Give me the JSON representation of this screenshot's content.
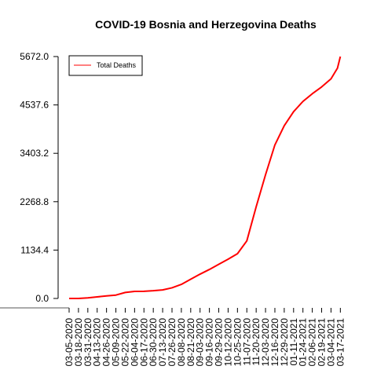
{
  "chart_data": {
    "type": "line",
    "title": "COVID-19 Bosnia and Herzegovina Deaths",
    "xlabel": "",
    "ylabel": "",
    "ylim": [
      0,
      5672
    ],
    "yticks": [
      "0.0",
      "1134.4",
      "2268.8",
      "3403.2",
      "4537.6",
      "5672.0"
    ],
    "ytick_values": [
      0,
      1134.4,
      2268.8,
      3403.2,
      4537.6,
      5672.0
    ],
    "xlim": [
      "2020-03-05",
      "2021-03-21"
    ],
    "xticks": [
      "03-05-2020",
      "03-18-2020",
      "03-31-2020",
      "04-13-2020",
      "04-26-2020",
      "05-09-2020",
      "05-22-2020",
      "06-04-2020",
      "06-17-2020",
      "06-30-2020",
      "07-13-2020",
      "07-26-2020",
      "08-08-2020",
      "08-21-2020",
      "09-03-2020",
      "09-16-2020",
      "09-29-2020",
      "10-12-2020",
      "10-25-2020",
      "11-07-2020",
      "11-20-2020",
      "12-03-2020",
      "12-16-2020",
      "12-29-2020",
      "01-11-2021",
      "01-24-2021",
      "02-06-2021",
      "02-19-2021",
      "03-04-2021",
      "03-17-2021"
    ],
    "legend": {
      "position": "top-left",
      "entries": [
        {
          "label": "Total Deaths",
          "color": "#ff0000"
        }
      ]
    },
    "grid": false,
    "series": [
      {
        "name": "Total Deaths",
        "color": "#ff0000",
        "points": [
          [
            "2020-03-05",
            0
          ],
          [
            "2020-03-18",
            1
          ],
          [
            "2020-03-31",
            13
          ],
          [
            "2020-04-13",
            37
          ],
          [
            "2020-04-26",
            59
          ],
          [
            "2020-05-09",
            79
          ],
          [
            "2020-05-22",
            140
          ],
          [
            "2020-06-04",
            165
          ],
          [
            "2020-06-17",
            169
          ],
          [
            "2020-06-30",
            181
          ],
          [
            "2020-07-13",
            200
          ],
          [
            "2020-07-26",
            250
          ],
          [
            "2020-08-08",
            330
          ],
          [
            "2020-08-21",
            450
          ],
          [
            "2020-09-03",
            570
          ],
          [
            "2020-09-16",
            680
          ],
          [
            "2020-09-29",
            800
          ],
          [
            "2020-10-12",
            920
          ],
          [
            "2020-10-25",
            1050
          ],
          [
            "2020-11-07",
            1350
          ],
          [
            "2020-11-20",
            2150
          ],
          [
            "2020-12-03",
            2900
          ],
          [
            "2020-12-16",
            3600
          ],
          [
            "2020-12-29",
            4050
          ],
          [
            "2021-01-11",
            4380
          ],
          [
            "2021-01-24",
            4620
          ],
          [
            "2021-02-06",
            4800
          ],
          [
            "2021-02-19",
            4960
          ],
          [
            "2021-03-04",
            5150
          ],
          [
            "2021-03-13",
            5400
          ],
          [
            "2021-03-17",
            5672
          ]
        ]
      }
    ]
  }
}
